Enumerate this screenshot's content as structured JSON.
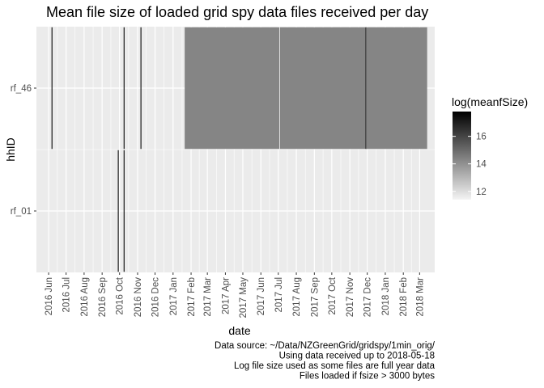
{
  "chart_data": {
    "type": "heatmap",
    "title": "Mean file size of loaded grid spy data files received per day",
    "xlabel": "date",
    "ylabel": "hhID",
    "y_categories": [
      "rf_01",
      "rf_46"
    ],
    "x_ticks": [
      "2016 Jun",
      "2016 Jul",
      "2016 Aug",
      "2016 Sep",
      "2016 Oct",
      "2016 Nov",
      "2016 Dec",
      "2017 Jan",
      "2017 Feb",
      "2017 Mar",
      "2017 Apr",
      "2017 May",
      "2017 Jun",
      "2017 Jul",
      "2017 Aug",
      "2017 Sep",
      "2017 Oct",
      "2017 Nov",
      "2017 Dec",
      "2018 Jan",
      "2018 Feb",
      "2018 Mar"
    ],
    "xlim": [
      "2016-05-11",
      "2018-03-27"
    ],
    "tiles": [
      {
        "hhID": "rf_46",
        "start": "2016-06-06",
        "end": "2016-06-07",
        "value": 17.6
      },
      {
        "hhID": "rf_01",
        "start": "2016-09-28",
        "end": "2016-09-29",
        "value": 17.6
      },
      {
        "hhID": "rf_01",
        "start": "2016-10-08",
        "end": "2016-10-09",
        "value": 17.6
      },
      {
        "hhID": "rf_46",
        "start": "2016-10-08",
        "end": "2016-10-09",
        "value": 17.6
      },
      {
        "hhID": "rf_46",
        "start": "2016-11-06",
        "end": "2016-11-07",
        "value": 17.6
      },
      {
        "hhID": "rf_46",
        "start": "2017-01-21",
        "end": "2017-07-03",
        "value": 14.3
      },
      {
        "hhID": "rf_46",
        "start": "2017-07-03",
        "end": "2017-07-04",
        "value": 11.6
      },
      {
        "hhID": "rf_46",
        "start": "2017-07-04",
        "end": "2017-11-28",
        "value": 14.3
      },
      {
        "hhID": "rf_46",
        "start": "2017-11-28",
        "end": "2017-11-29",
        "value": 17.6
      },
      {
        "hhID": "rf_46",
        "start": "2017-11-29",
        "end": "2018-03-14",
        "value": 14.3
      }
    ],
    "legend": {
      "title": "log(meanfSize)",
      "placement": "right",
      "min": 11.4,
      "max": 17.8,
      "breaks": [
        12,
        14,
        16
      ],
      "color_low": "#f4f4f4",
      "color_high": "#000000"
    },
    "grid": true,
    "panel_color": "#ebebeb",
    "caption": [
      "Data source: ~/Data/NZGreenGrid/gridspy/1min_orig/",
      "Using data received up to 2018-05-18",
      "Log file size used as some files are full year data",
      "Files loaded if fsize > 3000 bytes"
    ]
  }
}
